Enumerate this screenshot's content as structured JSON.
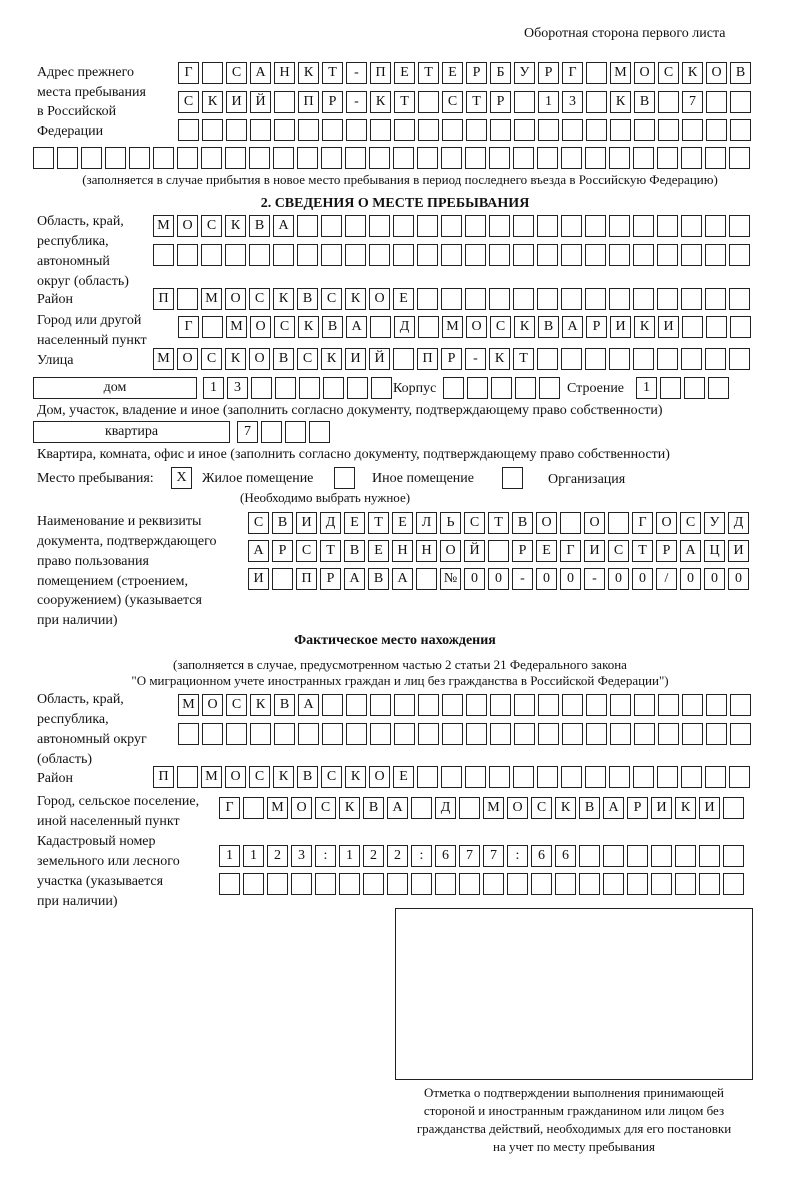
{
  "header": "Оборотная сторона первого листа",
  "prev_address": {
    "label": [
      "Адрес прежнего",
      "места пребывания",
      "в Российской",
      "Федерации"
    ],
    "rows": [
      [
        "Г",
        "",
        "С",
        "А",
        "Н",
        "К",
        "Т",
        "-",
        "П",
        "Е",
        "Т",
        "Е",
        "Р",
        "Б",
        "У",
        "Р",
        "Г",
        "",
        "М",
        "О",
        "С",
        "К",
        "О",
        "В"
      ],
      [
        "С",
        "К",
        "И",
        "Й",
        "",
        "П",
        "Р",
        "-",
        "К",
        "Т",
        "",
        "С",
        "Т",
        "Р",
        "",
        "1",
        "3",
        "",
        "К",
        "В",
        "",
        "7",
        "",
        ""
      ],
      [
        "",
        "",
        "",
        "",
        "",
        "",
        "",
        "",
        "",
        "",
        "",
        "",
        "",
        "",
        "",
        "",
        "",
        "",
        "",
        "",
        "",
        "",
        "",
        ""
      ],
      [
        "",
        "",
        "",
        "",
        "",
        "",
        "",
        "",
        "",
        "",
        "",
        "",
        "",
        "",
        "",
        "",
        "",
        "",
        "",
        "",
        "",
        "",
        "",
        "",
        "",
        "",
        "",
        "",
        "",
        ""
      ]
    ],
    "note": "(заполняется в случае прибытия в новое место пребывания в период последнего въезда в Российскую Федерацию)"
  },
  "section2": {
    "title": "2. СВЕДЕНИЯ О МЕСТЕ ПРЕБЫВАНИЯ",
    "region_label": [
      "Область, край,",
      "республика,",
      "автономный",
      "округ (область)"
    ],
    "region_rows": [
      [
        "М",
        "О",
        "С",
        "К",
        "В",
        "А",
        "",
        "",
        "",
        "",
        "",
        "",
        "",
        "",
        "",
        "",
        "",
        "",
        "",
        "",
        "",
        "",
        "",
        "",
        ""
      ],
      [
        "",
        "",
        "",
        "",
        "",
        "",
        "",
        "",
        "",
        "",
        "",
        "",
        "",
        "",
        "",
        "",
        "",
        "",
        "",
        "",
        "",
        "",
        "",
        "",
        ""
      ]
    ],
    "district_label": "Район",
    "district": [
      "П",
      "",
      "М",
      "О",
      "С",
      "К",
      "В",
      "С",
      "К",
      "О",
      "Е",
      "",
      "",
      "",
      "",
      "",
      "",
      "",
      "",
      "",
      "",
      "",
      "",
      "",
      ""
    ],
    "city_label": [
      "Город или другой",
      "населенный пункт"
    ],
    "city": [
      "Г",
      "",
      "М",
      "О",
      "С",
      "К",
      "В",
      "А",
      "",
      "Д",
      "",
      "М",
      "О",
      "С",
      "К",
      "В",
      "А",
      "Р",
      "И",
      "К",
      "И",
      "",
      "",
      ""
    ],
    "street_label": "Улица",
    "street": [
      "М",
      "О",
      "С",
      "К",
      "О",
      "В",
      "С",
      "К",
      "И",
      "Й",
      "",
      "П",
      "Р",
      "-",
      "К",
      "Т",
      "",
      "",
      "",
      "",
      "",
      "",
      "",
      "",
      ""
    ],
    "house_type": "дом",
    "house": [
      "1",
      "3",
      "",
      "",
      "",
      "",
      "",
      ""
    ],
    "korpus_label": "Корпус",
    "korpus": [
      "",
      "",
      "",
      "",
      ""
    ],
    "building_label": "Строение",
    "building": [
      "1",
      "",
      "",
      ""
    ],
    "house_note": "Дом, участок, владение и иное (заполнить согласно документу, подтверждающему право собственности)",
    "flat_type": "квартира",
    "flat": [
      "7",
      "",
      "",
      ""
    ],
    "flat_note": "Квартира, комната, офис и иное (заполнить согласно документу, подтверждающему право собственности)",
    "stay_label": "Место пребывания:",
    "stay_options": [
      {
        "label": "Жилое помещение",
        "mark": "X"
      },
      {
        "label": "Иное помещение",
        "mark": ""
      },
      {
        "label": "Организация",
        "mark": ""
      }
    ],
    "stay_note": "(Необходимо выбрать нужное)",
    "doc_label": [
      "Наименование и реквизиты",
      "документа, подтверждающего",
      "право пользования",
      "помещением (строением,",
      "сооружением) (указывается",
      "при наличии)"
    ],
    "doc_rows": [
      [
        "С",
        "В",
        "И",
        "Д",
        "Е",
        "Т",
        "Е",
        "Л",
        "Ь",
        "С",
        "Т",
        "В",
        "О",
        "",
        "О",
        "",
        "Г",
        "О",
        "С",
        "У",
        "Д"
      ],
      [
        "А",
        "Р",
        "С",
        "Т",
        "В",
        "Е",
        "Н",
        "Н",
        "О",
        "Й",
        "",
        "Р",
        "Е",
        "Г",
        "И",
        "С",
        "Т",
        "Р",
        "А",
        "Ц",
        "И"
      ],
      [
        "И",
        "",
        "П",
        "Р",
        "А",
        "В",
        "А",
        "",
        "№",
        "0",
        "0",
        "-",
        "0",
        "0",
        "-",
        "0",
        "0",
        "/",
        "0",
        "0",
        "0"
      ]
    ]
  },
  "actual": {
    "title": "Фактическое место нахождения",
    "note1": "(заполняется в случае, предусмотренном частью 2 статьи 21 Федерального закона",
    "note2": "\"О миграционном учете иностранных граждан и лиц без гражданства в Российской Федерации\")",
    "region_label": [
      "Область, край,",
      "республика,",
      "автономный округ",
      "(область)"
    ],
    "region_rows": [
      [
        "М",
        "О",
        "С",
        "К",
        "В",
        "А",
        "",
        "",
        "",
        "",
        "",
        "",
        "",
        "",
        "",
        "",
        "",
        "",
        "",
        "",
        "",
        "",
        "",
        ""
      ],
      [
        "",
        "",
        "",
        "",
        "",
        "",
        "",
        "",
        "",
        "",
        "",
        "",
        "",
        "",
        "",
        "",
        "",
        "",
        "",
        "",
        "",
        "",
        "",
        ""
      ]
    ],
    "district_label": "Район",
    "district": [
      "П",
      "",
      "М",
      "О",
      "С",
      "К",
      "В",
      "С",
      "К",
      "О",
      "Е",
      "",
      "",
      "",
      "",
      "",
      "",
      "",
      "",
      "",
      "",
      "",
      "",
      "",
      ""
    ],
    "city_label": [
      "Город, сельское поселение,",
      "иной населенный пункт"
    ],
    "city": [
      "Г",
      "",
      "М",
      "О",
      "С",
      "К",
      "В",
      "А",
      "",
      "Д",
      "",
      "М",
      "О",
      "С",
      "К",
      "В",
      "А",
      "Р",
      "И",
      "К",
      "И",
      ""
    ],
    "cadastre_label": [
      "Кадастровый номер",
      "земельного или лесного",
      "участка (указывается",
      "при наличии)"
    ],
    "cadastre_rows": [
      [
        "1",
        "1",
        "2",
        "3",
        ":",
        "1",
        "2",
        "2",
        ":",
        "6",
        "7",
        "7",
        ":",
        "6",
        "6",
        "",
        "",
        "",
        "",
        "",
        "",
        ""
      ],
      [
        "",
        "",
        "",
        "",
        "",
        "",
        "",
        "",
        "",
        "",
        "",
        "",
        "",
        "",
        "",
        "",
        "",
        "",
        "",
        "",
        "",
        ""
      ]
    ],
    "stamp_caption": [
      "Отметка о подтверждении выполнения принимающей",
      "стороной и иностранным гражданином или лицом без",
      "гражданства действий, необходимых для его постановки",
      "на учет по месту пребывания"
    ]
  }
}
